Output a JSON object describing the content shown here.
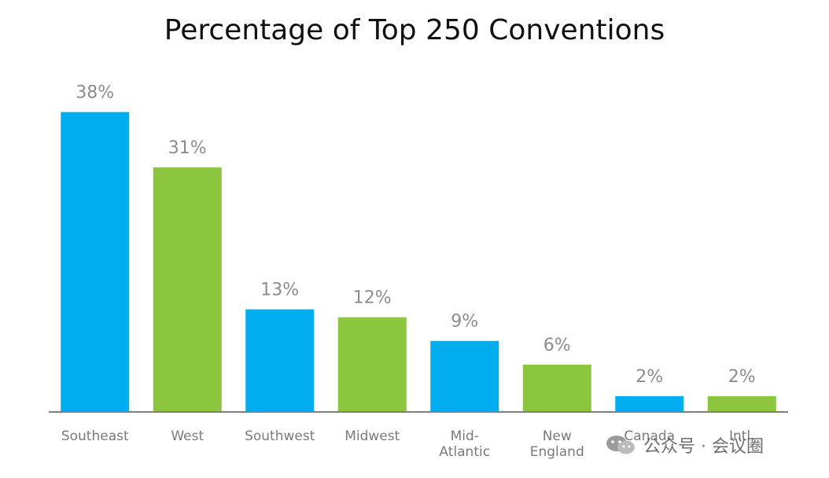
{
  "chart_data": {
    "type": "bar",
    "title": "Percentage of Top 250 Conventions",
    "xlabel": "",
    "ylabel": "",
    "ylim": [
      0,
      40
    ],
    "grid": false,
    "legend": "none",
    "categories": [
      "Southeast",
      "West",
      "Southwest",
      "Midwest",
      "Mid-\nAtlantic",
      "New\nEngland",
      "Canada",
      "Intl."
    ],
    "values": [
      38,
      31,
      13,
      12,
      9,
      6,
      2,
      2
    ],
    "data_labels": [
      "38%",
      "31%",
      "13%",
      "12%",
      "9%",
      "6%",
      "2%",
      "2%"
    ],
    "colors": [
      "#00aeef",
      "#8cc63f",
      "#00aeef",
      "#8cc63f",
      "#00aeef",
      "#8cc63f",
      "#00aeef",
      "#8cc63f"
    ],
    "axis_color": "#7f7f7f"
  },
  "watermark": {
    "icon": "wechat-icon",
    "text": "公众号 · 会议圈"
  }
}
